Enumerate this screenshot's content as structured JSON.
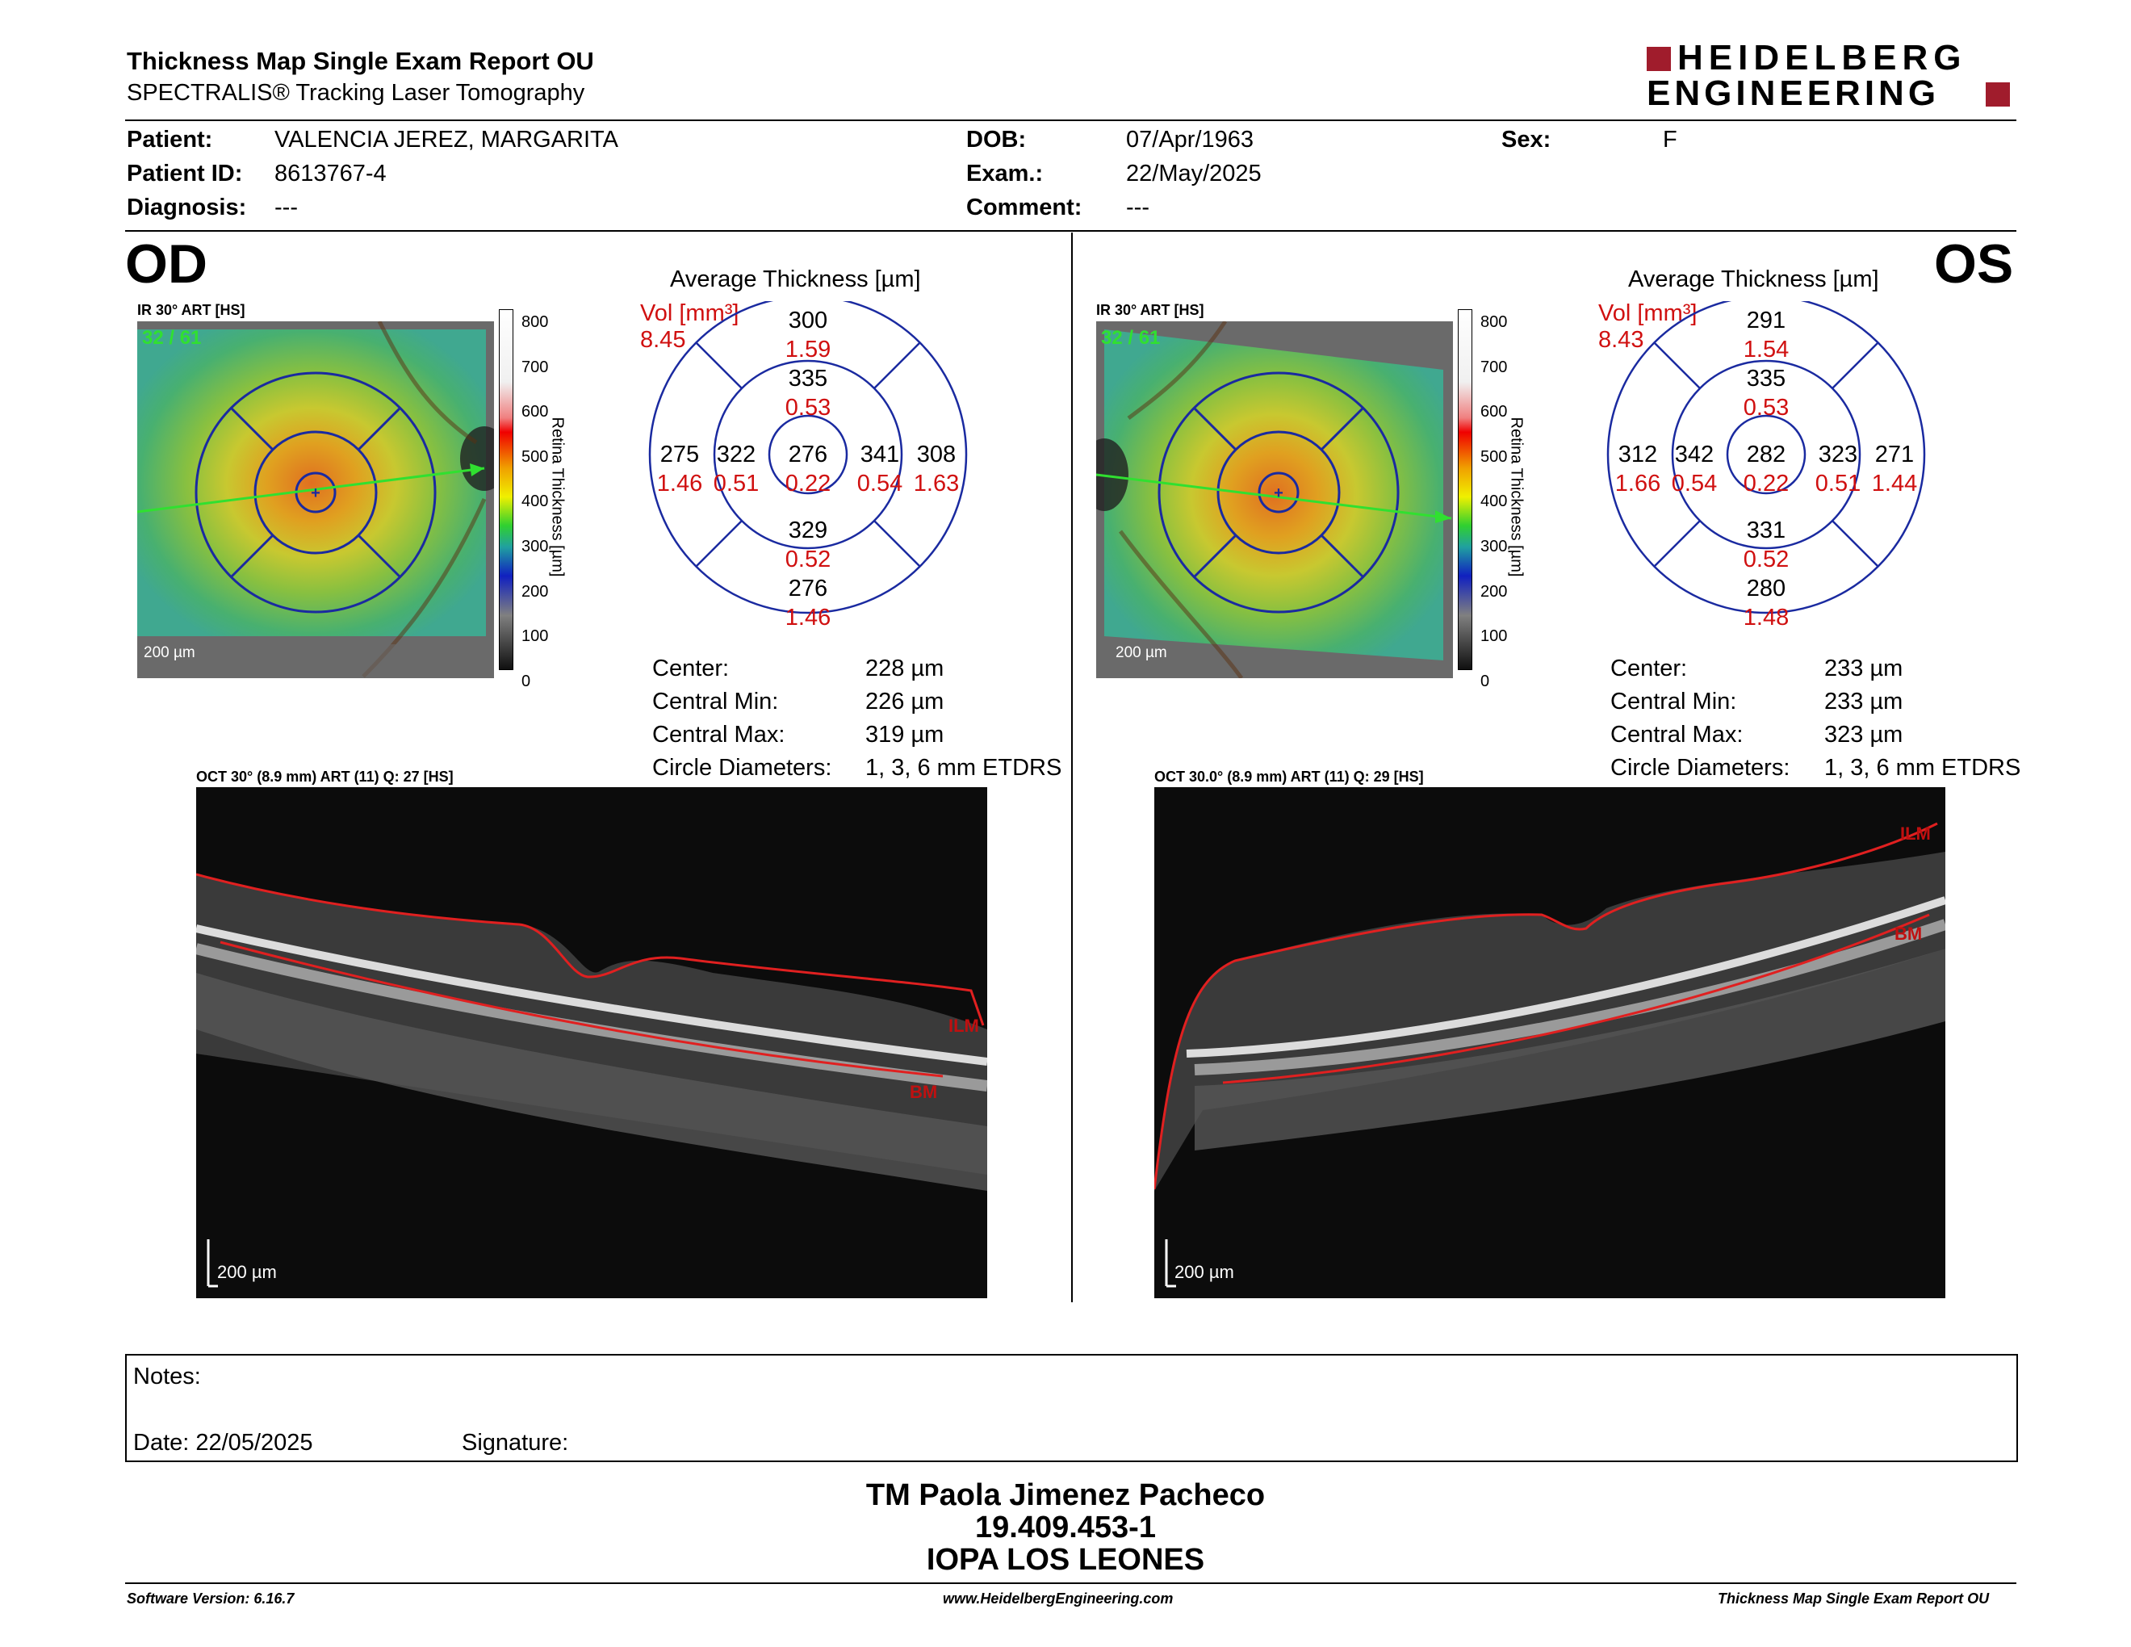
{
  "header": {
    "title": "Thickness Map Single Exam Report OU",
    "subtitle": "SPECTRALIS® Tracking Laser Tomography",
    "logo_line1": "HEIDELBERG",
    "logo_line2": "ENGINEERING",
    "logo_color": "#a01c2c"
  },
  "patient": {
    "patient_label": "Patient:",
    "patient_value": "VALENCIA JEREZ, MARGARITA",
    "id_label": "Patient ID:",
    "id_value": "8613767-4",
    "diagnosis_label": "Diagnosis:",
    "diagnosis_value": "---",
    "dob_label": "DOB:",
    "dob_value": "07/Apr/1963",
    "exam_label": "Exam.:",
    "exam_value": "22/May/2025",
    "comment_label": "Comment:",
    "comment_value": "---",
    "sex_label": "Sex:",
    "sex_value": "F"
  },
  "od": {
    "eye": "OD",
    "ir_label": "IR 30° ART [HS]",
    "art_count": "32 / 61",
    "scale": "200 µm",
    "colorbar_ticks": [
      "800",
      "700",
      "600",
      "500",
      "400",
      "300",
      "200",
      "100",
      "0"
    ],
    "colorbar_title": "Retina Thickness [µm]",
    "avg_title": "Average Thickness [µm]",
    "vol_label": "Vol [mm³]",
    "vol_value": "8.45",
    "sectors": {
      "sup_outer": "300",
      "sup_outer_vol": "1.59",
      "sup_inner": "335",
      "sup_inner_vol": "0.53",
      "left_outer": "275",
      "left_outer_vol": "1.46",
      "left_inner": "322",
      "left_inner_vol": "0.51",
      "center": "276",
      "center_vol": "0.22",
      "right_inner": "341",
      "right_inner_vol": "0.54",
      "right_outer": "308",
      "right_outer_vol": "1.63",
      "inf_inner": "329",
      "inf_inner_vol": "0.52",
      "inf_outer": "276",
      "inf_outer_vol": "1.46"
    },
    "stats": {
      "center_label": "Center:",
      "center_value": "228 µm",
      "min_label": "Central Min:",
      "min_value": "226 µm",
      "max_label": "Central Max:",
      "max_value": "319 µm",
      "circ_label": "Circle Diameters:",
      "circ_value": "1, 3, 6 mm ETDRS"
    },
    "oct_label": "OCT 30° (8.9 mm) ART (11) Q: 27 [HS]",
    "ilm": "ILM",
    "bm": "BM",
    "oct_scale": "200 µm"
  },
  "os": {
    "eye": "OS",
    "ir_label": "IR 30° ART [HS]",
    "art_count": "32 / 61",
    "scale": "200 µm",
    "colorbar_ticks": [
      "800",
      "700",
      "600",
      "500",
      "400",
      "300",
      "200",
      "100",
      "0"
    ],
    "colorbar_title": "Retina Thickness [µm]",
    "avg_title": "Average Thickness [µm]",
    "vol_label": "Vol [mm³]",
    "vol_value": "8.43",
    "sectors": {
      "sup_outer": "291",
      "sup_outer_vol": "1.54",
      "sup_inner": "335",
      "sup_inner_vol": "0.53",
      "left_outer": "312",
      "left_outer_vol": "1.66",
      "left_inner": "342",
      "left_inner_vol": "0.54",
      "center": "282",
      "center_vol": "0.22",
      "right_inner": "323",
      "right_inner_vol": "0.51",
      "right_outer": "271",
      "right_outer_vol": "1.44",
      "inf_inner": "331",
      "inf_inner_vol": "0.52",
      "inf_outer": "280",
      "inf_outer_vol": "1.48"
    },
    "stats": {
      "center_label": "Center:",
      "center_value": "233 µm",
      "min_label": "Central Min:",
      "min_value": "233 µm",
      "max_label": "Central Max:",
      "max_value": "323 µm",
      "circ_label": "Circle Diameters:",
      "circ_value": "1, 3, 6 mm ETDRS"
    },
    "oct_label": "OCT 30.0° (8.9 mm) ART (11) Q: 29 [HS]",
    "ilm": "ILM",
    "bm": "BM",
    "oct_scale": "200 µm"
  },
  "notes": {
    "notes_label": "Notes:",
    "date_label": "Date: 22/05/2025",
    "signature_label": "Signature:"
  },
  "signature_block": {
    "name": "TM Paola Jimenez Pacheco",
    "rut": "19.409.453-1",
    "institution": "IOPA LOS LEONES"
  },
  "footer": {
    "software": "Software Version: 6.16.7",
    "website": "www.HeidelbergEngineering.com",
    "report": "Thickness Map Single Exam Report OU"
  }
}
